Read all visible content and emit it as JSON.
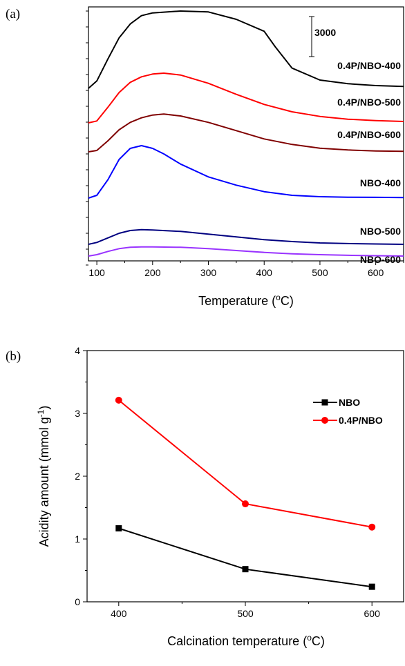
{
  "panel_a": {
    "tag": "(a)",
    "scale_bar_label": "3000"
  },
  "panel_b": {
    "tag": "(b)"
  },
  "chart_data": [
    {
      "type": "line",
      "xlabel": "Temperature (°C)",
      "xlabel_main": "Temperature (",
      "xlabel_sup": "o",
      "xlabel_tail": "C)",
      "xlim": [
        85,
        650
      ],
      "xticks": [
        100,
        200,
        300,
        400,
        500,
        600
      ],
      "y_ticks_labeled": false,
      "scale_bar": "3000",
      "series": [
        {
          "name": "0.4P/NBO-400",
          "color": "#000000",
          "x": [
            85,
            100,
            120,
            140,
            160,
            180,
            200,
            250,
            300,
            350,
            400,
            420,
            450,
            500,
            550,
            600,
            650
          ],
          "y": [
            0,
            800,
            3200,
            5500,
            7000,
            7900,
            8200,
            8400,
            8300,
            7500,
            6200,
            4500,
            2200,
            900,
            500,
            300,
            200
          ]
        },
        {
          "name": "0.4P/NBO-500",
          "color": "#ff0000",
          "x": [
            85,
            100,
            120,
            140,
            160,
            180,
            200,
            220,
            250,
            300,
            350,
            400,
            450,
            500,
            550,
            600,
            650
          ],
          "y": [
            0,
            200,
            1700,
            3300,
            4400,
            5000,
            5300,
            5400,
            5200,
            4300,
            3100,
            2000,
            1200,
            700,
            400,
            250,
            150
          ]
        },
        {
          "name": "0.4P/NBO-600",
          "color": "#800000",
          "x": [
            85,
            100,
            120,
            140,
            160,
            180,
            200,
            220,
            250,
            300,
            350,
            400,
            450,
            500,
            550,
            600,
            650
          ],
          "y": [
            0,
            150,
            1200,
            2400,
            3200,
            3700,
            4000,
            4100,
            3900,
            3200,
            2300,
            1400,
            800,
            400,
            200,
            100,
            50
          ]
        },
        {
          "name": "NBO-400",
          "color": "#0000ff",
          "x": [
            85,
            100,
            120,
            140,
            160,
            180,
            200,
            220,
            250,
            300,
            350,
            400,
            450,
            500,
            550,
            600,
            650
          ],
          "y": [
            0,
            300,
            2000,
            4200,
            5400,
            5700,
            5400,
            4800,
            3700,
            2300,
            1400,
            700,
            300,
            150,
            100,
            80,
            60
          ]
        },
        {
          "name": "NBO-500",
          "color": "#000080",
          "x": [
            85,
            100,
            120,
            140,
            160,
            180,
            200,
            250,
            300,
            350,
            400,
            450,
            500,
            550,
            600,
            650
          ],
          "y": [
            0,
            200,
            700,
            1200,
            1500,
            1600,
            1550,
            1400,
            1100,
            800,
            500,
            300,
            150,
            80,
            40,
            0
          ]
        },
        {
          "name": "NBO-600",
          "color": "#9933ff",
          "x": [
            85,
            100,
            120,
            140,
            160,
            180,
            200,
            250,
            300,
            350,
            400,
            450,
            500,
            550,
            600,
            650
          ],
          "y": [
            0,
            150,
            500,
            800,
            950,
            1000,
            1000,
            950,
            800,
            600,
            400,
            250,
            150,
            80,
            40,
            0
          ]
        }
      ]
    },
    {
      "type": "line",
      "xlabel": "Calcination temperature (°C)",
      "xlabel_main": "Calcination temperature (",
      "xlabel_sup": "o",
      "xlabel_tail": "C)",
      "ylabel": "Acidity amount (mmol g-1)",
      "ylabel_main": "Acidity amount (mmol g",
      "ylabel_sup": "-1",
      "ylabel_tail": ")",
      "xlim": [
        375,
        625
      ],
      "ylim": [
        0,
        4
      ],
      "xticks": [
        400,
        500,
        600
      ],
      "yticks": [
        0,
        1,
        2,
        3,
        4
      ],
      "legend_position": "top-right",
      "series": [
        {
          "name": "NBO",
          "color": "#000000",
          "marker": "square",
          "x": [
            400,
            500,
            600
          ],
          "y": [
            1.17,
            0.52,
            0.24
          ]
        },
        {
          "name": "0.4P/NBO",
          "color": "#ff0000",
          "marker": "circle",
          "x": [
            400,
            500,
            600
          ],
          "y": [
            3.21,
            1.56,
            1.19
          ]
        }
      ]
    }
  ]
}
